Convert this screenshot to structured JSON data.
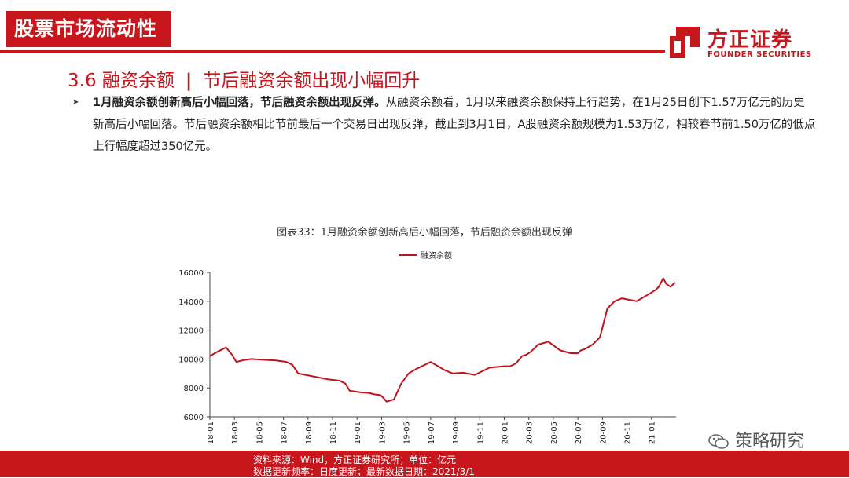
{
  "header": {
    "category": "股票市场流动性"
  },
  "logo": {
    "cn": "方正证券",
    "en": "FOUNDER SECURITIES"
  },
  "section": {
    "number": "3.6 融资余额",
    "separator": "|",
    "subtitle": "节后融资余额出现小幅回升"
  },
  "bullet": {
    "bold": "1月融资余额创新高后小幅回落，节后融资余额出现反弹。",
    "text": "从融资余额看，1月以来融资余额保持上行趋势，在1月25日创下1.57万亿元的历史新高后小幅回落。节后融资余额相比节前最后一个交易日出现反弹，截止到3月1日，A股融资余额规模为1.53万亿，相较春节前1.50万亿的低点上行幅度超过350亿元。"
  },
  "figure_title": "图表33：1月融资余额创新高后小幅回落，节后融资余额出现反弹",
  "footer": {
    "source": "资料来源：Wind，方正证券研究所；单位：亿元",
    "update": "数据更新频率：日度更新；最新数据日期：2021/3/1"
  },
  "watermark": "策略研究",
  "colors": {
    "brand_red": "#c8161d",
    "series_red": "#c0141c"
  },
  "chart_data": {
    "type": "line",
    "legend": {
      "label": "融资余额",
      "position": "top-center"
    },
    "series": [
      {
        "name": "融资余额",
        "x": [
          2018.0,
          2018.06,
          2018.11,
          2018.15,
          2018.18,
          2018.22,
          2018.28,
          2018.35,
          2018.45,
          2018.52,
          2018.56,
          2018.6,
          2018.7,
          2018.8,
          2018.88,
          2018.92,
          2018.95,
          2019.02,
          2019.08,
          2019.12,
          2019.16,
          2019.18,
          2019.2,
          2019.25,
          2019.3,
          2019.35,
          2019.4,
          2019.5,
          2019.6,
          2019.65,
          2019.72,
          2019.8,
          2019.9,
          2020.0,
          2020.04,
          2020.08,
          2020.12,
          2020.15,
          2020.18,
          2020.23,
          2020.3,
          2020.38,
          2020.45,
          2020.5,
          2020.52,
          2020.55,
          2020.6,
          2020.65,
          2020.7,
          2020.75,
          2020.8,
          2020.85,
          2020.9,
          2020.95,
          2021.0,
          2021.03,
          2021.05,
          2021.08,
          2021.1,
          2021.13,
          2021.16
        ],
        "values": [
          10200,
          10550,
          10800,
          10300,
          9800,
          9900,
          10000,
          9950,
          9900,
          9800,
          9600,
          9000,
          8800,
          8600,
          8500,
          8300,
          7800,
          7700,
          7650,
          7550,
          7500,
          7300,
          7050,
          7200,
          8300,
          9000,
          9300,
          9800,
          9200,
          9000,
          9050,
          8900,
          9400,
          9500,
          9500,
          9700,
          10200,
          10300,
          10500,
          11000,
          11200,
          10600,
          10400,
          10400,
          10600,
          10700,
          11000,
          11500,
          13500,
          14000,
          14200,
          14100,
          14000,
          14300,
          14600,
          14800,
          15000,
          15600,
          15200,
          15000,
          15300
        ]
      }
    ],
    "x_ticks": [
      "18-01",
      "18-03",
      "18-05",
      "18-07",
      "18-09",
      "18-11",
      "19-01",
      "19-03",
      "19-05",
      "19-07",
      "19-09",
      "19-11",
      "20-01",
      "20-03",
      "20-05",
      "20-07",
      "20-09",
      "20-11",
      "21-01"
    ],
    "x_tick_values": [
      2018.0,
      2018.1667,
      2018.3333,
      2018.5,
      2018.6667,
      2018.8333,
      2019.0,
      2019.1667,
      2019.3333,
      2019.5,
      2019.6667,
      2019.8333,
      2020.0,
      2020.1667,
      2020.3333,
      2020.5,
      2020.6667,
      2020.8333,
      2021.0
    ],
    "y_ticks": [
      6000,
      8000,
      10000,
      12000,
      14000,
      16000
    ],
    "xlim": [
      2018.0,
      2021.167
    ],
    "ylim": [
      6000,
      16000
    ],
    "grid": false
  }
}
